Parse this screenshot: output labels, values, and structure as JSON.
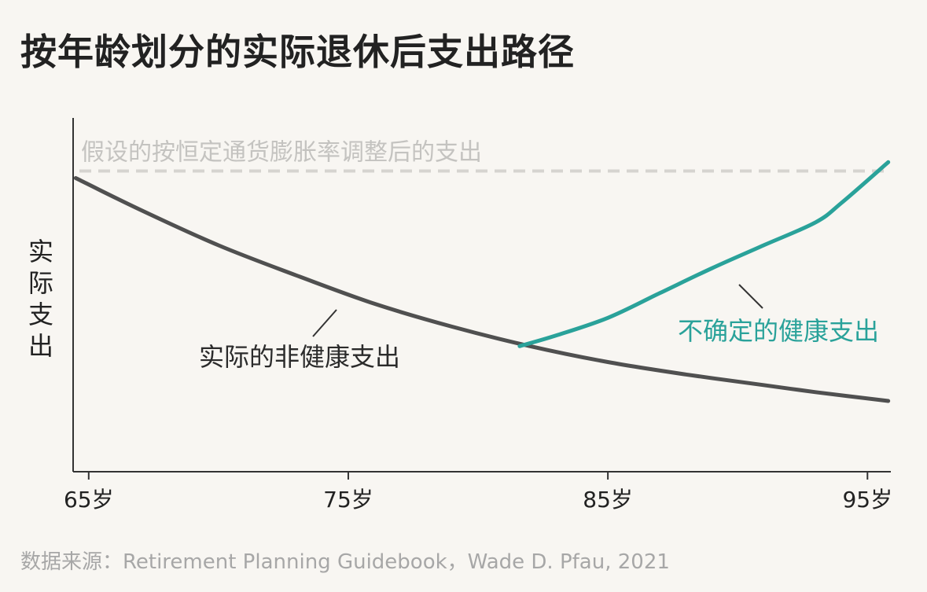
{
  "title": "按年龄划分的实际退休后支出路径",
  "source": "数据来源：Retirement Planning Guidebook，Wade D. Pfau, 2021",
  "chart_data": {
    "type": "line",
    "title": "按年龄划分的实际退休后支出路径",
    "xlabel": "",
    "ylabel": "实际支出",
    "xlim": [
      64.4,
      95.9
    ],
    "ylim": [
      0,
      100
    ],
    "x_ticks": [
      65,
      75,
      85,
      95
    ],
    "x_tick_labels": [
      "65岁",
      "75岁",
      "85岁",
      "95岁"
    ],
    "grid": false,
    "reference_line": {
      "label": "假设的按恒定通货膨胀率调整后的支出",
      "value": 85,
      "style": "dashed",
      "color": "#d6d4d0"
    },
    "series": [
      {
        "name": "实际的非健康支出",
        "color": "#505050",
        "x": [
          64.5,
          67,
          70,
          73,
          76,
          79,
          82,
          85,
          88,
          91,
          93,
          95.8
        ],
        "y": [
          83,
          74,
          64,
          55.5,
          47.5,
          41,
          35.5,
          31,
          27.5,
          24.5,
          22.5,
          20
        ]
      },
      {
        "name": "不确定的健康支出",
        "color": "#2aa29a",
        "x": [
          81.6,
          83,
          85,
          87,
          89,
          91,
          93,
          94,
          95.8
        ],
        "y": [
          35.5,
          38.5,
          43.5,
          50.5,
          57.5,
          64,
          70.5,
          76,
          87.5
        ]
      }
    ]
  }
}
